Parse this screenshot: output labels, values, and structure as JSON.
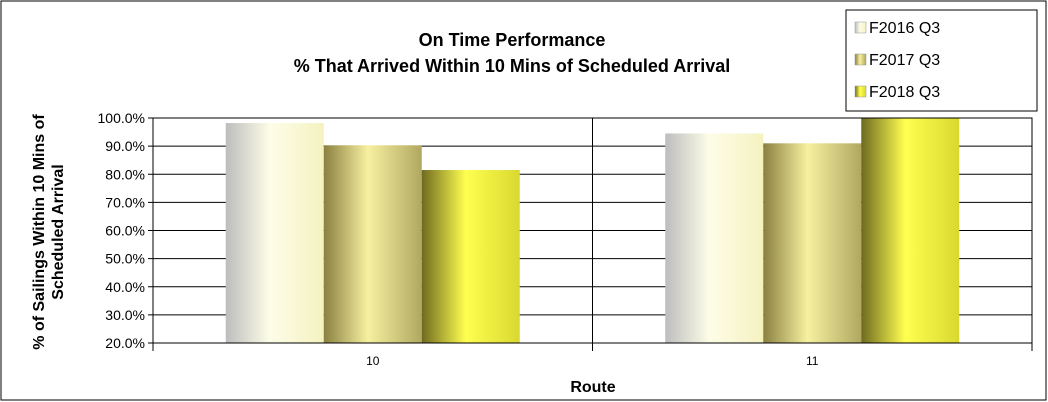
{
  "chart_data": {
    "type": "bar",
    "title_lines": [
      "On Time Performance",
      "% That Arrived Within 10 Mins of Scheduled Arrival"
    ],
    "xlabel": "Route",
    "ylabel_lines": [
      "% of Sailings Within 10 Mins of",
      "Scheduled Arrival"
    ],
    "categories": [
      "10",
      "11"
    ],
    "series": [
      {
        "name": "F2016 Q3",
        "values": [
          98.2,
          94.5
        ]
      },
      {
        "name": "F2017 Q3",
        "values": [
          90.3,
          91.0
        ]
      },
      {
        "name": "F2018 Q3",
        "values": [
          81.5,
          100.0
        ]
      }
    ],
    "ylim": [
      20,
      100
    ],
    "yticks": [
      "20.0%",
      "30.0%",
      "40.0%",
      "50.0%",
      "60.0%",
      "70.0%",
      "80.0%",
      "90.0%",
      "100.0%"
    ],
    "ytick_values": [
      20,
      30,
      40,
      50,
      60,
      70,
      80,
      90,
      100
    ],
    "grid": true,
    "legend_position": "top-right",
    "colors": {
      "F2016 Q3": "#d8d8c8",
      "F2017 Q3": "#c8c070",
      "F2018 Q3": "#e8e840"
    }
  }
}
